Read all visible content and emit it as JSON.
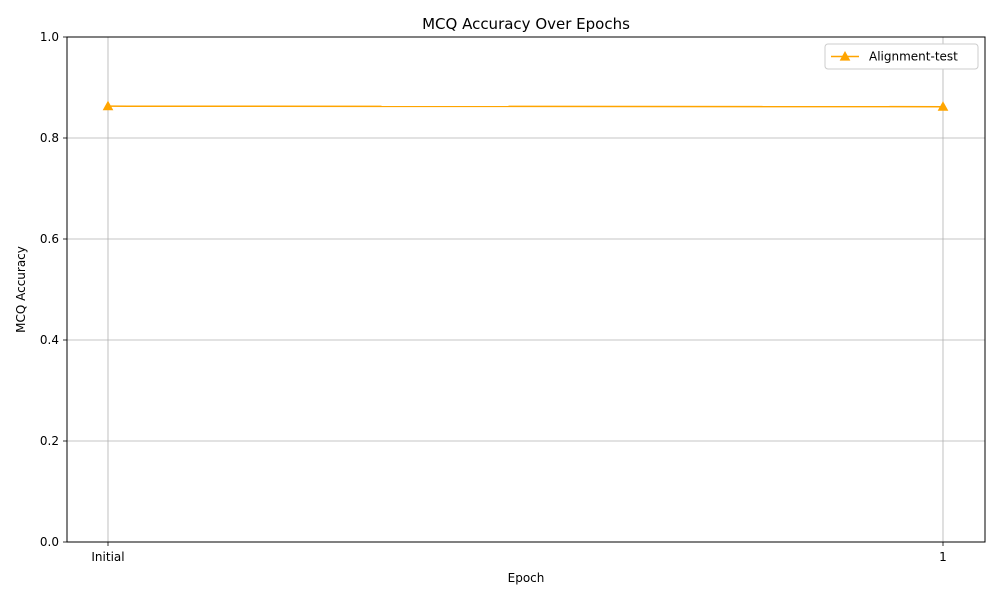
{
  "chart_data": {
    "type": "line",
    "title": "MCQ Accuracy Over Epochs",
    "xlabel": "Epoch",
    "ylabel": "MCQ Accuracy",
    "categories": [
      "Initial",
      "1"
    ],
    "ylim": [
      0,
      1
    ],
    "yticks": [
      "0.0",
      "0.2",
      "0.4",
      "0.6",
      "0.8",
      "1.0"
    ],
    "grid": true,
    "legend_position": "top-right",
    "series": [
      {
        "name": "Alignment-test",
        "color": "#ffa500",
        "marker": "triangle-up",
        "values": [
          0.863,
          0.862
        ]
      }
    ]
  }
}
